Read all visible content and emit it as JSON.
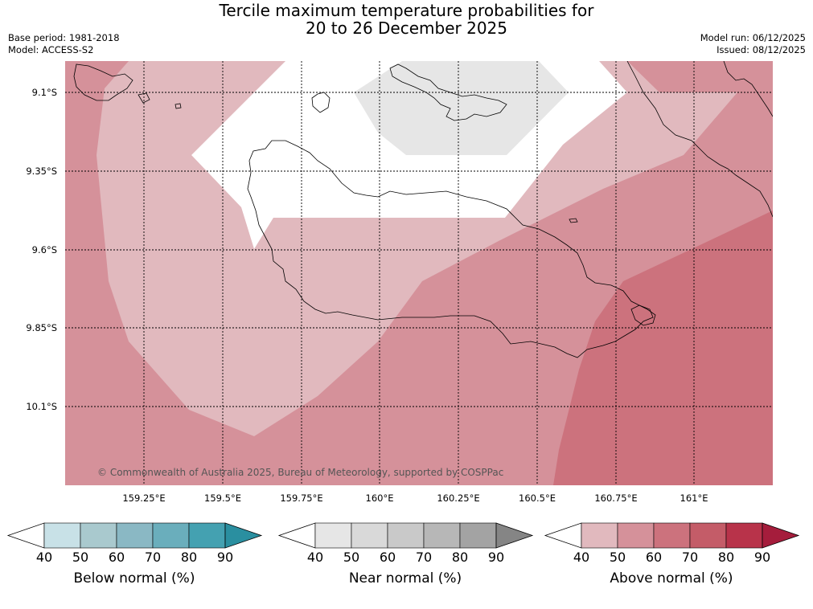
{
  "title_line1": "Tercile maximum temperature probabilities for",
  "title_line2": "20 to 26 December 2025",
  "base_period": "Base period: 1981-2018",
  "model": "Model: ACCESS-S2",
  "model_run": "Model run: 06/12/2025",
  "issued": "Issued: 08/12/2025",
  "copyright": "© Commonwealth of Australia 2025, Bureau of Meteorology, supported by COSPPac",
  "lat_labels": [
    "9.1°S",
    "9.35°S",
    "9.6°S",
    "9.85°S",
    "10.1°S"
  ],
  "lon_labels": [
    "159.25°E",
    "159.5°E",
    "159.75°E",
    "160°E",
    "160.25°E",
    "160.5°E",
    "160.75°E",
    "161°E"
  ],
  "colorbars": [
    {
      "title": "Below normal (%)",
      "ticks": [
        "40",
        "50",
        "60",
        "70",
        "80",
        "90"
      ],
      "colors": [
        "#ffffff",
        "#c8e1e7",
        "#a9c9ce",
        "#8ab8c4",
        "#6aaebc",
        "#44a1b1",
        "#2a8fa0"
      ]
    },
    {
      "title": "Near normal (%)",
      "ticks": [
        "40",
        "50",
        "60",
        "70",
        "80",
        "90"
      ],
      "colors": [
        "#ffffff",
        "#e6e6e6",
        "#d9d9d9",
        "#c9c9c9",
        "#b7b7b7",
        "#a3a3a3",
        "#858585"
      ]
    },
    {
      "title": "Above normal (%)",
      "ticks": [
        "40",
        "50",
        "60",
        "70",
        "80",
        "90"
      ],
      "colors": [
        "#ffffff",
        "#e1b9be",
        "#d5919a",
        "#cc727d",
        "#c45c68",
        "#b8334a",
        "#a51d3c"
      ]
    }
  ],
  "map_colors": {
    "above_50": "#e1b9be",
    "above_60": "#d5919a",
    "above_70": "#cc727d",
    "near_50": "#e6e6e6",
    "background": "#ffffff"
  }
}
